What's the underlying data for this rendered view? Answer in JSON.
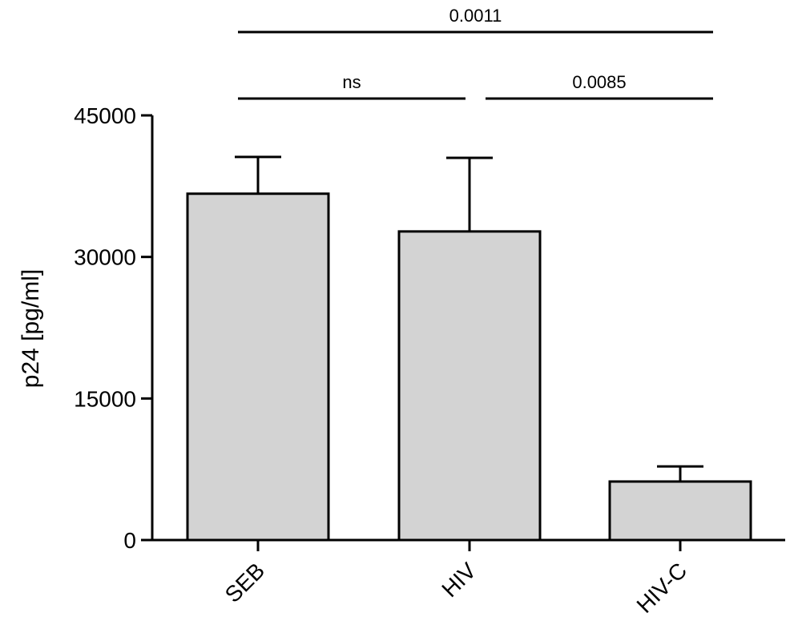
{
  "chart_data": {
    "type": "bar",
    "categories": [
      "SEB",
      "HIV",
      "HIV-C"
    ],
    "values": [
      36700,
      32700,
      6200
    ],
    "error_upper": [
      40600,
      40500,
      7800
    ],
    "ylabel": "p24 [pg/ml]",
    "xlabel": "",
    "ylim": [
      0,
      45000
    ],
    "yticks": [
      0,
      15000,
      30000,
      45000
    ],
    "ytick_labels": [
      "0",
      "15000",
      "30000",
      "45000"
    ],
    "grid": false,
    "significance": [
      {
        "from": 0,
        "to": 1,
        "label": "ns"
      },
      {
        "from": 1,
        "to": 2,
        "label": "0.0085"
      },
      {
        "from": 0,
        "to": 2,
        "label": "0.0011"
      }
    ]
  }
}
